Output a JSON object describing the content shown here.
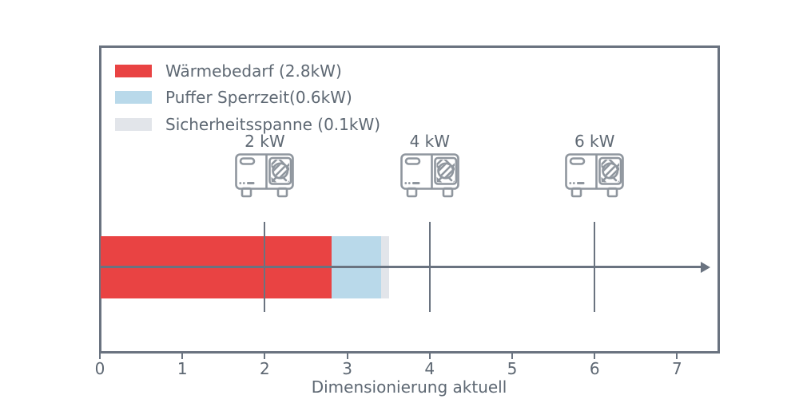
{
  "chart_data": {
    "type": "bar",
    "orientation": "horizontal",
    "title": "",
    "xlabel": "Dimensionierung aktuell",
    "ylabel": "",
    "xlim": [
      0,
      7.5
    ],
    "x_ticks": [
      0,
      1,
      2,
      3,
      4,
      5,
      6,
      7
    ],
    "grid": false,
    "axis_arrow": true,
    "bar": {
      "total_kw": 3.5,
      "segments": [
        {
          "name": "Wärmebedarf",
          "label": "Wärmebedarf (2.8kW)",
          "value_kw": 2.8,
          "color": "#e94343"
        },
        {
          "name": "Puffer Sperrzeit",
          "label": "Puffer Sperrzeit(0.6kW)",
          "value_kw": 0.6,
          "color": "#b9d9ea"
        },
        {
          "name": "Sicherheitsspanne",
          "label": "Sicherheitsspanne (0.1kW)",
          "value_kw": 0.1,
          "color": "#e2e5ea"
        }
      ]
    },
    "markers": [
      {
        "x": 2,
        "label": "2 kW",
        "icon": "heat-pump"
      },
      {
        "x": 4,
        "label": "4 kW",
        "icon": "heat-pump"
      },
      {
        "x": 6,
        "label": "6 kW",
        "icon": "heat-pump"
      }
    ],
    "legend_position": "upper left"
  },
  "colors": {
    "text": "#5e6873",
    "frame": "#6a7380",
    "icon_stroke": "#8f969e",
    "background": "#ffffff"
  }
}
